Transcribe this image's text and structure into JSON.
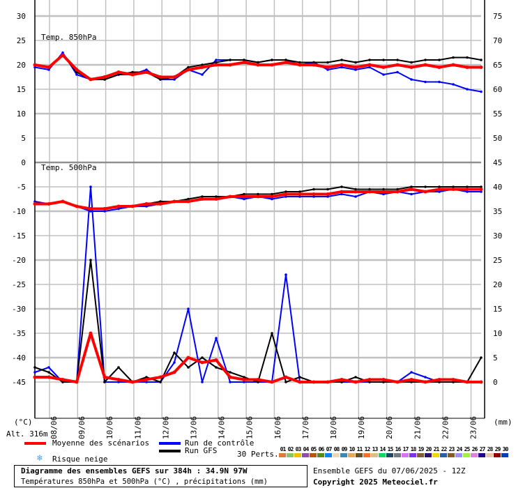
{
  "chart_data": {
    "type": "line",
    "panels": [
      {
        "label": "Temp. 850hPa",
        "unit_axis": "left",
        "ylim": [
          0,
          30
        ]
      },
      {
        "label": "Temp. 500hPa",
        "unit_axis": "left",
        "ylim": [
          -45,
          0
        ]
      },
      {
        "label": "",
        "unit_axis": "right",
        "ylim": [
          0,
          75
        ]
      }
    ],
    "left_ticks": [
      30,
      25,
      20,
      15,
      10,
      5,
      0,
      -5,
      -10,
      -15,
      -20,
      -25,
      -30,
      -35,
      -40,
      -45
    ],
    "right_ticks": [
      75,
      70,
      65,
      60,
      55,
      50,
      45,
      40,
      35,
      30,
      25,
      20,
      15,
      10,
      5,
      0
    ],
    "left_unit": "(°C)",
    "right_unit": "(mm)",
    "x_ticks": [
      "08/06",
      "09/06",
      "10/06",
      "11/06",
      "12/06",
      "13/06",
      "14/06",
      "15/06",
      "16/06",
      "17/06",
      "18/06",
      "19/06",
      "20/06",
      "21/06",
      "22/06",
      "23/06"
    ],
    "x_step_hours": 12,
    "x_start": "07/06 12Z",
    "grid": true,
    "series": [
      {
        "name": "Moyenne des scénarios",
        "color": "#ff0000",
        "variable": "t850",
        "values": [
          20,
          19.5,
          22,
          19,
          17,
          17.5,
          18.5,
          18,
          18.5,
          17.5,
          17.5,
          19,
          19.5,
          20,
          20,
          20.5,
          20,
          20,
          20.5,
          20,
          20,
          19.5,
          20,
          19.5,
          20,
          19.5,
          20,
          19.5,
          20,
          19.5,
          20,
          19.5,
          19.5
        ]
      },
      {
        "name": "Moyenne des scénarios",
        "color": "#ff0000",
        "variable": "t500",
        "values": [
          -8.5,
          -8.5,
          -8,
          -9,
          -9.5,
          -9.5,
          -9,
          -9,
          -8.5,
          -8.5,
          -8,
          -8,
          -7.5,
          -7.5,
          -7,
          -7,
          -7,
          -7,
          -6.5,
          -6.5,
          -6.5,
          -6.5,
          -6,
          -6,
          -6,
          -6,
          -6,
          -5.5,
          -6,
          -5.5,
          -5.5,
          -5.5,
          -5.5
        ]
      },
      {
        "name": "Moyenne des scénarios",
        "color": "#ff0000",
        "variable": "precip_mm",
        "values": [
          1,
          1,
          0.5,
          0,
          10,
          1,
          0.5,
          0,
          0.5,
          1,
          2,
          5,
          4,
          4.5,
          1,
          0.5,
          0.5,
          0,
          1,
          0,
          0,
          0,
          0.5,
          0,
          0.5,
          0.5,
          0,
          0.5,
          0,
          0.5,
          0.5,
          0,
          0
        ]
      },
      {
        "name": "Run de contrôle",
        "color": "#0000ff",
        "variable": "t850",
        "values": [
          19.5,
          19,
          22.5,
          18,
          17,
          17,
          18,
          18,
          19,
          17,
          17,
          19,
          18,
          21,
          21,
          21,
          20.5,
          21,
          21,
          20,
          20.5,
          19,
          19.5,
          19,
          19.5,
          18,
          18.5,
          17,
          16.5,
          16.5,
          16,
          15,
          14.5
        ]
      },
      {
        "name": "Run de contrôle",
        "color": "#0000ff",
        "variable": "t500",
        "values": [
          -8,
          -8.5,
          -8,
          -9,
          -10,
          -10,
          -9.5,
          -9,
          -9,
          -8.5,
          -8,
          -8,
          -7.5,
          -7.5,
          -7,
          -7.5,
          -7,
          -7.5,
          -7,
          -7,
          -7,
          -7,
          -6.5,
          -7,
          -6,
          -6.5,
          -6,
          -6.5,
          -6,
          -6,
          -5.5,
          -6,
          -6
        ]
      },
      {
        "name": "Run de contrôle",
        "color": "#0000ff",
        "variable": "precip_mm",
        "values": [
          2,
          3,
          0,
          0,
          40,
          0,
          0,
          0,
          0,
          0,
          4,
          15,
          0,
          9,
          0,
          0,
          0,
          0,
          22,
          0,
          0,
          0,
          0,
          0,
          0,
          0,
          0,
          2,
          1,
          0,
          0,
          0,
          0
        ]
      },
      {
        "name": "Run GFS",
        "color": "#000000",
        "variable": "t850",
        "values": [
          20,
          19.5,
          22,
          18.5,
          17,
          17,
          18,
          18.5,
          18.5,
          17,
          17.5,
          19.5,
          20,
          20.5,
          21,
          21,
          20.5,
          21,
          21,
          20.5,
          20.5,
          20.5,
          21,
          20.5,
          21,
          21,
          21,
          20.5,
          21,
          21,
          21.5,
          21.5,
          21
        ]
      },
      {
        "name": "Run GFS",
        "color": "#000000",
        "variable": "t500",
        "values": [
          -8.5,
          -8.5,
          -8,
          -9,
          -9.5,
          -9.5,
          -9,
          -9,
          -8.5,
          -8,
          -8,
          -7.5,
          -7,
          -7,
          -7,
          -6.5,
          -6.5,
          -6.5,
          -6,
          -6,
          -5.5,
          -5.5,
          -5,
          -5.5,
          -5.5,
          -5.5,
          -5.5,
          -5,
          -5,
          -5,
          -5,
          -5,
          -5
        ]
      },
      {
        "name": "Run GFS",
        "color": "#000000",
        "variable": "precip_mm",
        "values": [
          3,
          2,
          0,
          0,
          25,
          0,
          3,
          0,
          1,
          0,
          6,
          3,
          5,
          3,
          2,
          1,
          0,
          10,
          0,
          1,
          0,
          0,
          0,
          1,
          0,
          0,
          0,
          0,
          0,
          0,
          0,
          0,
          5
        ]
      }
    ]
  },
  "labels": {
    "alt": "Alt. 316m",
    "mean": "Moyenne des scénarios",
    "control": "Run de contrôle",
    "gfs": "Run GFS",
    "snow": "Risque neige",
    "perts": "30 Perts.",
    "title": "Diagramme des ensembles GEFS sur 384h : 34.9N 97W",
    "subtitle": "Températures 850hPa et 500hPa (°C) , précipitations (mm)",
    "run": "Ensemble GEFS du 07/06/2025 - 12Z",
    "copyright": "Copyright 2025 Meteociel.fr"
  },
  "icons": {
    "snow": "snowflake-icon"
  },
  "members": [
    {
      "n": "01",
      "color": "#e07b30"
    },
    {
      "n": "02",
      "color": "#8ec26b"
    },
    {
      "n": "03",
      "color": "#f0c000"
    },
    {
      "n": "04",
      "color": "#8e4fa8"
    },
    {
      "n": "05",
      "color": "#b8560c"
    },
    {
      "n": "06",
      "color": "#5a8a10"
    },
    {
      "n": "07",
      "color": "#0a84ff"
    },
    {
      "n": "08",
      "color": "#e8d8b8"
    },
    {
      "n": "09",
      "color": "#3a8ab8"
    },
    {
      "n": "10",
      "color": "#e8a858"
    },
    {
      "n": "11",
      "color": "#6a5020"
    },
    {
      "n": "12",
      "color": "#ff7020"
    },
    {
      "n": "13",
      "color": "#d8c080"
    },
    {
      "n": "14",
      "color": "#10d860"
    },
    {
      "n": "15",
      "color": "#204860"
    },
    {
      "n": "16",
      "color": "#707880"
    },
    {
      "n": "17",
      "color": "#e070f0"
    },
    {
      "n": "18",
      "color": "#8030f0"
    },
    {
      "n": "19",
      "color": "#806030"
    },
    {
      "n": "20",
      "color": "#301070"
    },
    {
      "n": "21",
      "color": "#f0d800"
    },
    {
      "n": "22",
      "color": "#2860a0"
    },
    {
      "n": "23",
      "color": "#8a5a20"
    },
    {
      "n": "24",
      "color": "#a090f0"
    },
    {
      "n": "25",
      "color": "#a0f040"
    },
    {
      "n": "26",
      "color": "#e080e0"
    },
    {
      "n": "27",
      "color": "#200090"
    },
    {
      "n": "28",
      "color": "#e0c8a8"
    },
    {
      "n": "29",
      "color": "#900000"
    },
    {
      "n": "30",
      "color": "#0040c0"
    }
  ]
}
